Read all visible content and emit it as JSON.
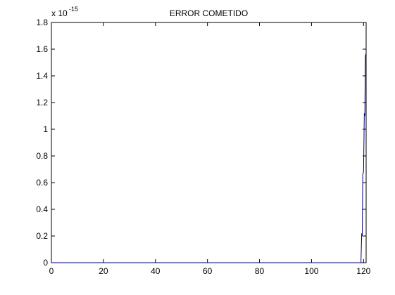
{
  "chart_data": {
    "type": "line",
    "title": "ERROR COMETIDO",
    "xlabel": "",
    "ylabel": "",
    "y_multiplier": {
      "base": "x 10",
      "exponent": "-15"
    },
    "xlim": [
      0,
      121
    ],
    "ylim": [
      0,
      1.8
    ],
    "grid": false,
    "x_ticks": [
      0,
      20,
      40,
      60,
      80,
      100,
      120
    ],
    "x_tick_labels": [
      "0",
      "20",
      "40",
      "60",
      "80",
      "100",
      "120"
    ],
    "y_ticks": [
      0,
      0.2,
      0.4,
      0.6,
      0.8,
      1.0,
      1.2,
      1.4,
      1.6,
      1.8
    ],
    "y_tick_labels": [
      "0",
      "0.2",
      "0.4",
      "0.6",
      "0.8",
      "1",
      "1.2",
      "1.4",
      "1.6",
      "1.8"
    ],
    "series": [
      {
        "color": "#00007f",
        "x": [
          0,
          20,
          40,
          60,
          80,
          100,
          119,
          119.3,
          119.5,
          119.7,
          120,
          120.3,
          120.5,
          120.7,
          121
        ],
        "y": [
          0,
          0,
          0,
          0,
          0,
          0,
          0,
          0.22,
          0.2,
          0.66,
          0.68,
          1.12,
          1.1,
          1.55,
          1.57
        ]
      }
    ]
  }
}
